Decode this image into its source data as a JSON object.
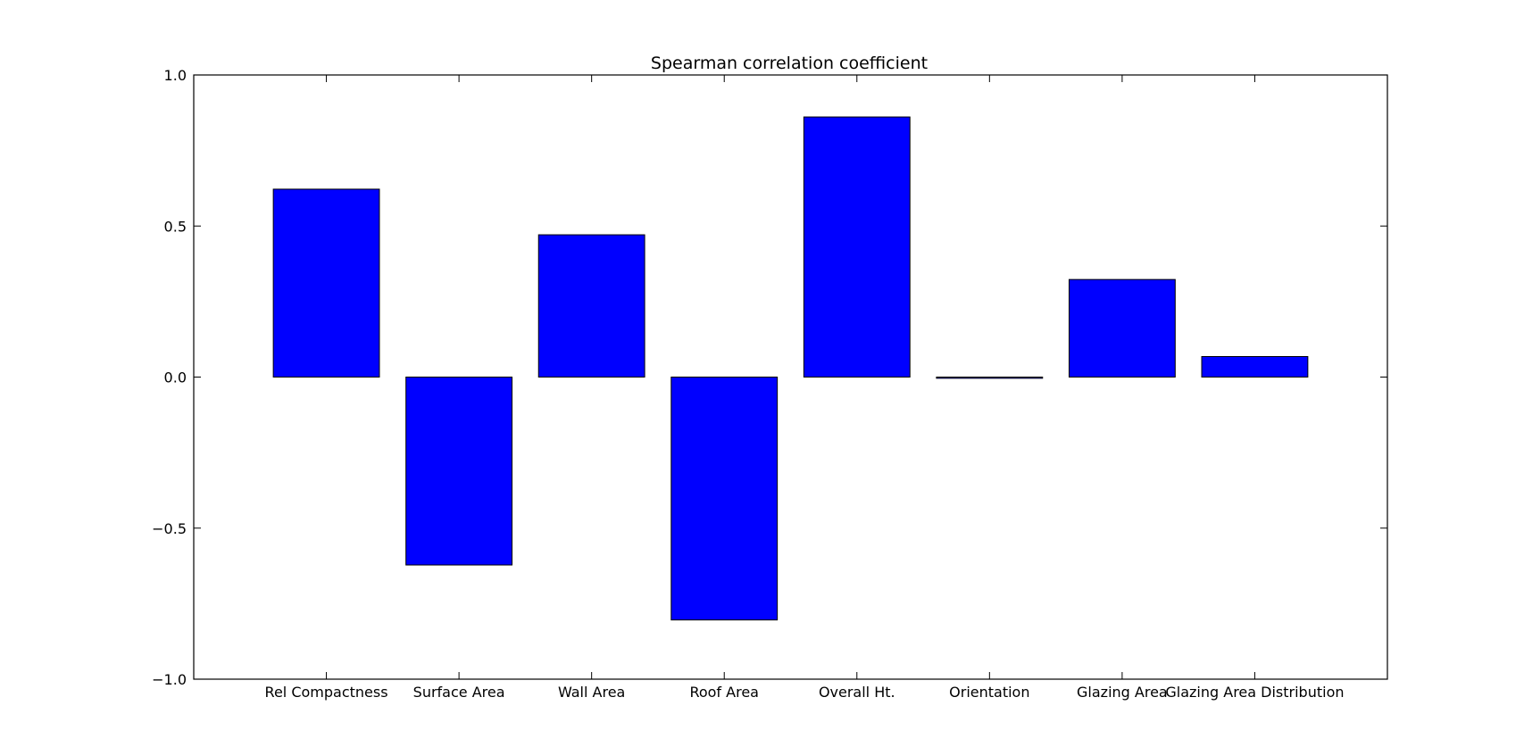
{
  "chart_data": {
    "type": "bar",
    "title": "Spearman correlation coefficient",
    "xlabel": "",
    "ylabel": "",
    "categories": [
      "Rel Compactness",
      "Surface Area",
      "Wall Area",
      "Roof Area",
      "Overall Ht.",
      "Orientation",
      "Glazing Area",
      "Glazing Area Distribution"
    ],
    "values": [
      0.622,
      -0.622,
      0.471,
      -0.804,
      0.861,
      -0.004,
      0.323,
      0.068
    ],
    "ylim": [
      -1.0,
      1.0
    ],
    "yticks": [
      "1.0",
      "0.5",
      "0.0",
      "−0.5",
      "−1.0"
    ],
    "ytick_values": [
      1.0,
      0.5,
      0.0,
      -0.5,
      -1.0
    ],
    "grid": false,
    "bar_color": "#0000ff",
    "edge_color": "#000000"
  }
}
